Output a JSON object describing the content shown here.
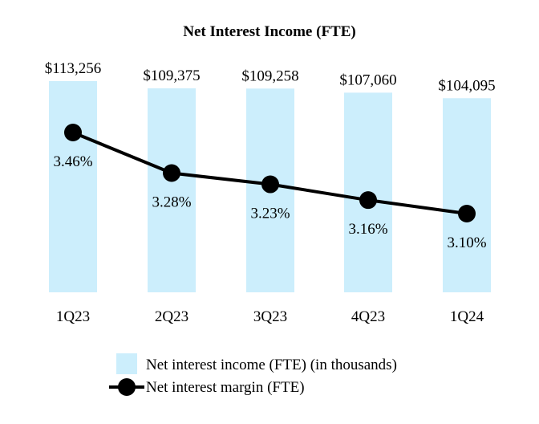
{
  "chart_data": {
    "type": "bar+line",
    "title": "Net Interest Income (FTE)",
    "categories": [
      "1Q23",
      "2Q23",
      "3Q23",
      "4Q23",
      "1Q24"
    ],
    "bar_series": {
      "name": "Net interest income (FTE) (in thousands)",
      "values": [
        113256,
        109375,
        109258,
        107060,
        104095
      ],
      "labels": [
        "$113,256",
        "$109,375",
        "$109,258",
        "$107,060",
        "$104,095"
      ],
      "color": "#cceefc"
    },
    "line_series": {
      "name": "Net interest margin (FTE)",
      "values": [
        3.46,
        3.28,
        3.23,
        3.16,
        3.1
      ],
      "labels": [
        "3.46%",
        "3.28%",
        "3.23%",
        "3.16%",
        "3.10%"
      ],
      "color": "#000000"
    },
    "bar_axis_range": [
      0,
      113256
    ],
    "line_axis_range": [
      2.5,
      3.55
    ]
  }
}
